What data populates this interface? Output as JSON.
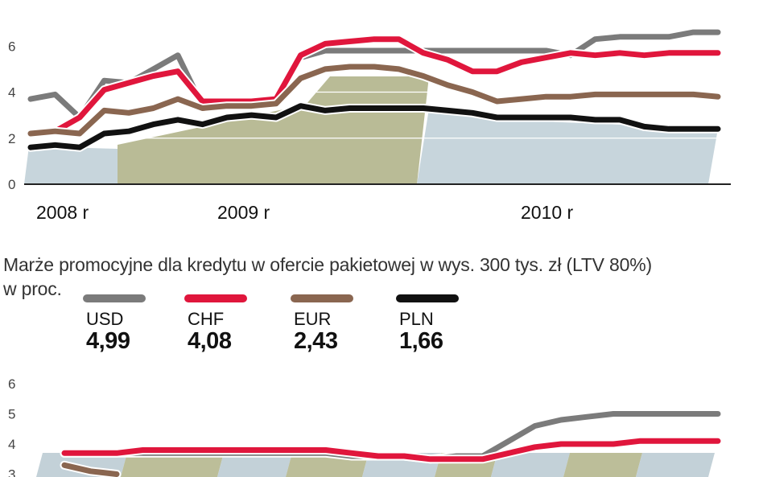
{
  "legend_items": [
    {
      "name": "USD",
      "value": "4,99",
      "color": "#7b7b7b"
    },
    {
      "name": "CHF",
      "value": "4,08",
      "color": "#e0163c"
    },
    {
      "name": "EUR",
      "value": "2,43",
      "color": "#8a6650"
    },
    {
      "name": "PLN",
      "value": "1,66",
      "color": "#111111"
    }
  ],
  "subtitle_line1": "Marże promocyjne dla kredytu w ofercie pakietowej w wys. 300 tys. zł (LTV 80%)",
  "subtitle_line2": "w proc.",
  "chart_data": [
    {
      "type": "line",
      "x_labels": [
        "2008 r",
        "2009 r",
        "2010 r"
      ],
      "yticks": [
        "0",
        "2",
        "4",
        "6"
      ],
      "ylim": [
        0,
        8
      ],
      "grid": true,
      "series": [
        {
          "name": "USD",
          "color": "#7b7b7b",
          "values": [
            3.7,
            3.9,
            2.9,
            4.5,
            4.4,
            5.0,
            5.6,
            3.4,
            3.5,
            3.6,
            3.6,
            5.5,
            5.8,
            5.8,
            5.8,
            5.8,
            5.8,
            5.8,
            5.8,
            5.8,
            5.8,
            5.8,
            5.6,
            6.3,
            6.4,
            6.4,
            6.4,
            6.6,
            6.6
          ]
        },
        {
          "name": "CHF",
          "color": "#e0163c",
          "values": [
            2.2,
            2.3,
            2.9,
            4.1,
            4.4,
            4.7,
            4.9,
            3.6,
            3.6,
            3.6,
            3.7,
            5.6,
            6.1,
            6.2,
            6.3,
            6.3,
            5.7,
            5.4,
            4.9,
            4.9,
            5.3,
            5.5,
            5.7,
            5.6,
            5.7,
            5.6,
            5.7,
            5.7,
            5.7
          ]
        },
        {
          "name": "EUR",
          "color": "#8a6650",
          "values": [
            2.2,
            2.3,
            2.2,
            3.2,
            3.1,
            3.3,
            3.7,
            3.3,
            3.4,
            3.4,
            3.5,
            4.6,
            5.0,
            5.1,
            5.1,
            5.0,
            4.7,
            4.3,
            4.0,
            3.6,
            3.7,
            3.8,
            3.8,
            3.9,
            3.9,
            3.9,
            3.9,
            3.9,
            3.8
          ]
        },
        {
          "name": "PLN",
          "color": "#111111",
          "values": [
            1.6,
            1.7,
            1.6,
            2.2,
            2.3,
            2.6,
            2.8,
            2.6,
            2.9,
            3.0,
            2.9,
            3.4,
            3.2,
            3.3,
            3.3,
            3.3,
            3.3,
            3.2,
            3.1,
            2.9,
            2.9,
            2.9,
            2.9,
            2.8,
            2.8,
            2.5,
            2.4,
            2.4,
            2.4
          ]
        }
      ]
    },
    {
      "type": "line",
      "yticks": [
        "3",
        "4",
        "5",
        "6"
      ],
      "ylim": [
        2.6,
        6.3
      ],
      "series": [
        {
          "name": "USD",
          "color": "#7b7b7b",
          "values": [
            3.7,
            3.7,
            3.7,
            3.7,
            3.7,
            3.7,
            3.7,
            3.7,
            3.7,
            3.7,
            3.7,
            3.6,
            3.6,
            3.6,
            3.5,
            3.6,
            3.6,
            4.1,
            4.6,
            4.8,
            4.9,
            5.0,
            5.0,
            5.0,
            5.0,
            5.0
          ]
        },
        {
          "name": "CHF",
          "color": "#e0163c",
          "values": [
            3.7,
            3.7,
            3.7,
            3.8,
            3.8,
            3.8,
            3.8,
            3.8,
            3.8,
            3.8,
            3.8,
            3.7,
            3.6,
            3.6,
            3.5,
            3.5,
            3.5,
            3.7,
            3.9,
            4.0,
            4.0,
            4.0,
            4.1,
            4.1,
            4.1,
            4.1
          ]
        },
        {
          "name": "EUR",
          "color": "#8a6650",
          "values": [
            3.3,
            3.1,
            3.0
          ]
        }
      ]
    }
  ]
}
